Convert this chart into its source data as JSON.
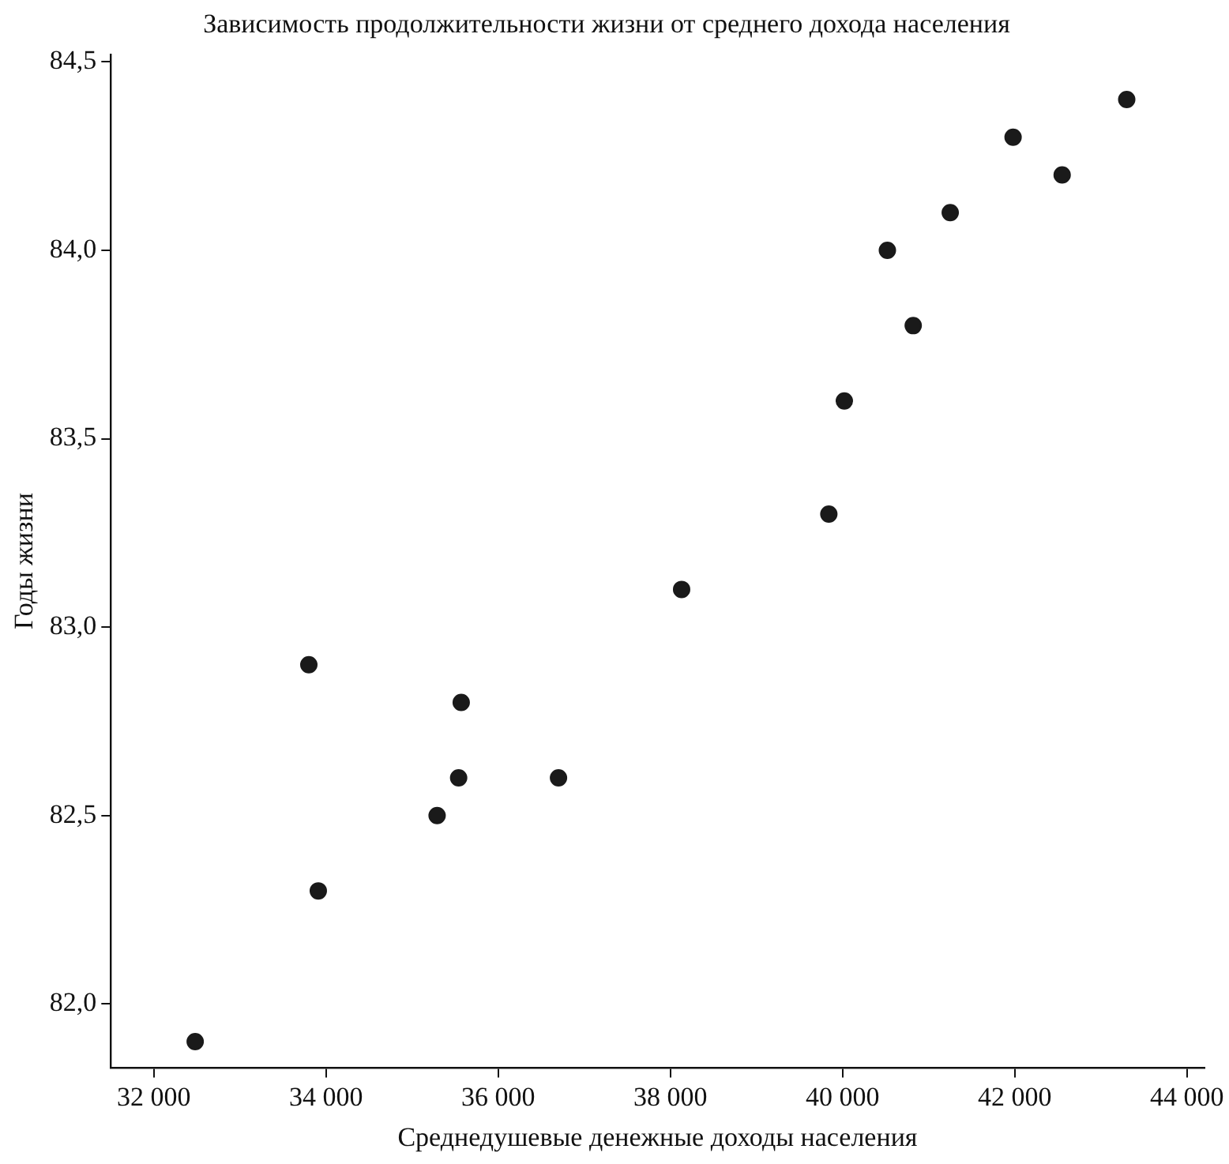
{
  "chart_data": {
    "type": "scatter",
    "title": "Зависимость продолжительности жизни от среднего дохода населения",
    "xlabel": "Среднедушевые денежные доходы населения",
    "ylabel": "Годы жизни",
    "x": [
      32480,
      33800,
      33910,
      35290,
      35540,
      35570,
      36700,
      38130,
      39840,
      40020,
      40520,
      40820,
      41250,
      41980,
      42550,
      43300
    ],
    "values": [
      81.9,
      82.9,
      82.3,
      82.5,
      82.6,
      82.8,
      82.6,
      83.1,
      83.3,
      83.6,
      84.0,
      83.8,
      84.1,
      84.3,
      84.2,
      84.4
    ],
    "color": "#1a1a1a",
    "marker": "circle",
    "grid": false,
    "legend": false,
    "xlim": [
      31500,
      44200
    ],
    "ylim": [
      81.83,
      84.52
    ],
    "xticks": [
      {
        "value": 32000,
        "label": "32 000"
      },
      {
        "value": 34000,
        "label": "34 000"
      },
      {
        "value": 36000,
        "label": "36 000"
      },
      {
        "value": 38000,
        "label": "38 000"
      },
      {
        "value": 40000,
        "label": "40 000"
      },
      {
        "value": 42000,
        "label": "42 000"
      },
      {
        "value": 44000,
        "label": "44 000"
      }
    ],
    "yticks": [
      {
        "value": 82,
        "label": "82,0"
      },
      {
        "value": 82.5,
        "label": "82,5"
      },
      {
        "value": 83,
        "label": "83,0"
      },
      {
        "value": 83.5,
        "label": "83,5"
      },
      {
        "value": 84,
        "label": "84,0"
      },
      {
        "value": 84.5,
        "label": "84,5"
      }
    ]
  }
}
